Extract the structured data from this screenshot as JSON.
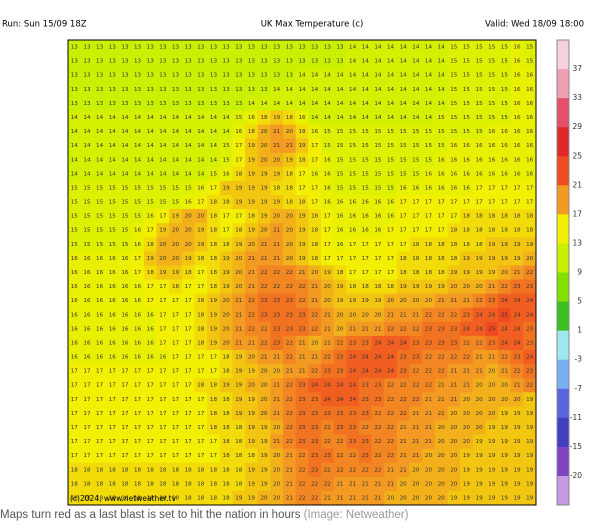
{
  "header": {
    "run": "Run: Sun 15/09 18Z",
    "title": "UK Max Temperature (c)",
    "valid": "Valid: Wed 18/09 18:00"
  },
  "copyright": "(c)2024, www.netweather.tv",
  "caption": {
    "text": "Maps turn red as a last blast is set to hit the nation in hours",
    "credit": "(Image: Netweather)"
  },
  "legend": {
    "labels": [
      37,
      33,
      29,
      25,
      21,
      17,
      13,
      9,
      5,
      1,
      -3,
      -7,
      -11,
      -15,
      -20
    ],
    "colors": [
      "#f6d0dc",
      "#f0a0b4",
      "#e4506a",
      "#e02828",
      "#f04a20",
      "#f29a22",
      "#f2f000",
      "#c8f000",
      "#84e000",
      "#3cc020",
      "#a0e8f0",
      "#7ab0f0",
      "#5a66e0",
      "#4040c0",
      "#8044c0",
      "#c49ae0"
    ]
  },
  "grid": [
    [
      13,
      13,
      13,
      13,
      13,
      13,
      13,
      13,
      13,
      13,
      13,
      13,
      13,
      13,
      13,
      13,
      13,
      13,
      13,
      13,
      13,
      13,
      14,
      14,
      14,
      14,
      14,
      14,
      14,
      14,
      15,
      15,
      15,
      15,
      15,
      16,
      15
    ],
    [
      13,
      13,
      13,
      13,
      13,
      13,
      13,
      13,
      13,
      13,
      13,
      13,
      13,
      13,
      13,
      13,
      13,
      13,
      13,
      13,
      13,
      13,
      14,
      14,
      14,
      14,
      14,
      14,
      14,
      14,
      15,
      15,
      15,
      15,
      15,
      16,
      15
    ],
    [
      13,
      13,
      13,
      13,
      13,
      13,
      13,
      13,
      13,
      13,
      13,
      13,
      13,
      13,
      13,
      13,
      13,
      13,
      14,
      14,
      14,
      14,
      14,
      14,
      14,
      14,
      14,
      14,
      14,
      14,
      15,
      15,
      15,
      15,
      15,
      16,
      16
    ],
    [
      13,
      13,
      13,
      13,
      13,
      13,
      13,
      13,
      13,
      13,
      13,
      13,
      13,
      13,
      13,
      13,
      14,
      14,
      14,
      14,
      14,
      14,
      14,
      14,
      14,
      14,
      14,
      14,
      14,
      14,
      15,
      15,
      15,
      15,
      15,
      16,
      16
    ],
    [
      13,
      13,
      13,
      13,
      13,
      13,
      13,
      13,
      13,
      13,
      13,
      13,
      13,
      13,
      14,
      14,
      14,
      14,
      14,
      14,
      14,
      14,
      14,
      14,
      14,
      14,
      14,
      14,
      14,
      14,
      15,
      15,
      15,
      15,
      15,
      16,
      16
    ],
    [
      14,
      14,
      14,
      14,
      14,
      14,
      14,
      14,
      14,
      14,
      14,
      14,
      14,
      15,
      16,
      18,
      19,
      18,
      16,
      14,
      14,
      14,
      14,
      14,
      14,
      14,
      14,
      14,
      14,
      15,
      15,
      15,
      15,
      15,
      15,
      16,
      16
    ],
    [
      14,
      14,
      14,
      14,
      14,
      14,
      14,
      14,
      14,
      14,
      14,
      14,
      14,
      16,
      18,
      20,
      21,
      20,
      18,
      16,
      15,
      15,
      15,
      15,
      15,
      15,
      15,
      15,
      15,
      15,
      15,
      15,
      15,
      16,
      16,
      16,
      16
    ],
    [
      14,
      14,
      14,
      14,
      14,
      14,
      14,
      14,
      14,
      14,
      14,
      14,
      15,
      17,
      19,
      20,
      21,
      21,
      19,
      17,
      15,
      15,
      15,
      15,
      15,
      15,
      15,
      15,
      15,
      15,
      16,
      16,
      16,
      16,
      16,
      16,
      16
    ],
    [
      14,
      14,
      14,
      14,
      14,
      14,
      14,
      14,
      14,
      14,
      14,
      14,
      15,
      17,
      19,
      20,
      20,
      19,
      18,
      17,
      16,
      15,
      15,
      15,
      15,
      15,
      15,
      15,
      15,
      16,
      16,
      16,
      16,
      16,
      16,
      16,
      16
    ],
    [
      14,
      14,
      14,
      14,
      14,
      14,
      14,
      14,
      14,
      14,
      14,
      15,
      16,
      18,
      19,
      19,
      19,
      18,
      17,
      16,
      16,
      15,
      15,
      15,
      15,
      15,
      15,
      15,
      16,
      16,
      16,
      16,
      16,
      16,
      16,
      16,
      16
    ],
    [
      15,
      15,
      15,
      15,
      15,
      15,
      15,
      15,
      15,
      15,
      16,
      17,
      19,
      19,
      19,
      19,
      18,
      18,
      17,
      17,
      16,
      15,
      15,
      15,
      15,
      15,
      16,
      16,
      16,
      16,
      16,
      16,
      17,
      17,
      17,
      17,
      17
    ],
    [
      15,
      15,
      15,
      15,
      15,
      15,
      15,
      15,
      15,
      16,
      17,
      18,
      18,
      19,
      19,
      19,
      19,
      18,
      18,
      17,
      16,
      16,
      16,
      16,
      16,
      16,
      17,
      17,
      17,
      17,
      17,
      17,
      17,
      17,
      17,
      17,
      17
    ],
    [
      15,
      15,
      15,
      15,
      15,
      15,
      16,
      17,
      19,
      20,
      20,
      18,
      17,
      17,
      18,
      19,
      20,
      20,
      19,
      18,
      17,
      16,
      16,
      16,
      16,
      16,
      17,
      17,
      17,
      17,
      17,
      18,
      18,
      18,
      18,
      18,
      18
    ],
    [
      15,
      15,
      15,
      15,
      15,
      16,
      17,
      19,
      20,
      20,
      19,
      18,
      17,
      18,
      19,
      20,
      21,
      20,
      19,
      18,
      17,
      16,
      16,
      16,
      16,
      17,
      17,
      17,
      17,
      17,
      18,
      18,
      18,
      18,
      18,
      18,
      18
    ],
    [
      15,
      15,
      15,
      15,
      15,
      16,
      18,
      20,
      20,
      20,
      19,
      18,
      18,
      19,
      20,
      21,
      21,
      20,
      19,
      18,
      17,
      16,
      17,
      17,
      17,
      17,
      17,
      18,
      18,
      18,
      18,
      18,
      18,
      19,
      19,
      19,
      19
    ],
    [
      16,
      16,
      16,
      16,
      16,
      17,
      19,
      20,
      20,
      19,
      18,
      18,
      19,
      20,
      21,
      21,
      21,
      20,
      19,
      18,
      17,
      17,
      17,
      17,
      17,
      17,
      18,
      18,
      18,
      18,
      18,
      19,
      19,
      19,
      19,
      19,
      20
    ],
    [
      16,
      16,
      16,
      16,
      16,
      17,
      18,
      19,
      19,
      18,
      17,
      18,
      19,
      20,
      21,
      22,
      22,
      22,
      21,
      20,
      19,
      18,
      17,
      17,
      17,
      17,
      18,
      18,
      18,
      18,
      19,
      19,
      19,
      19,
      20,
      21,
      22
    ],
    [
      16,
      16,
      16,
      16,
      16,
      16,
      17,
      17,
      18,
      17,
      17,
      18,
      19,
      20,
      21,
      22,
      22,
      22,
      22,
      21,
      20,
      19,
      18,
      18,
      18,
      18,
      19,
      19,
      19,
      19,
      20,
      20,
      20,
      21,
      22,
      23,
      23
    ],
    [
      16,
      16,
      16,
      16,
      16,
      16,
      17,
      17,
      17,
      17,
      18,
      19,
      20,
      21,
      22,
      23,
      23,
      23,
      22,
      21,
      20,
      19,
      19,
      19,
      19,
      20,
      20,
      20,
      20,
      21,
      21,
      21,
      22,
      23,
      24,
      24,
      24
    ],
    [
      16,
      16,
      16,
      16,
      16,
      16,
      16,
      17,
      17,
      17,
      18,
      19,
      20,
      21,
      22,
      23,
      23,
      23,
      23,
      22,
      21,
      20,
      20,
      20,
      20,
      21,
      21,
      21,
      22,
      22,
      22,
      23,
      24,
      24,
      25,
      24,
      24
    ],
    [
      16,
      16,
      16,
      16,
      16,
      16,
      16,
      17,
      17,
      17,
      18,
      19,
      20,
      21,
      22,
      22,
      23,
      23,
      23,
      22,
      21,
      20,
      21,
      21,
      21,
      22,
      22,
      22,
      23,
      23,
      23,
      24,
      24,
      25,
      24,
      24,
      23
    ],
    [
      16,
      16,
      16,
      16,
      16,
      16,
      16,
      17,
      17,
      17,
      18,
      19,
      20,
      21,
      21,
      22,
      23,
      22,
      21,
      20,
      21,
      22,
      23,
      23,
      24,
      24,
      24,
      23,
      23,
      23,
      23,
      22,
      22,
      23,
      24,
      24,
      23
    ],
    [
      16,
      16,
      16,
      16,
      16,
      16,
      16,
      16,
      17,
      17,
      17,
      17,
      18,
      19,
      20,
      21,
      21,
      22,
      21,
      21,
      22,
      23,
      24,
      24,
      24,
      24,
      23,
      23,
      22,
      22,
      22,
      22,
      21,
      21,
      22,
      23,
      24
    ],
    [
      17,
      17,
      17,
      17,
      17,
      17,
      17,
      17,
      17,
      17,
      17,
      17,
      18,
      19,
      19,
      20,
      20,
      21,
      21,
      22,
      23,
      23,
      24,
      24,
      24,
      24,
      23,
      22,
      22,
      22,
      21,
      21,
      21,
      20,
      21,
      22,
      23
    ],
    [
      17,
      17,
      17,
      17,
      17,
      17,
      17,
      17,
      17,
      17,
      18,
      18,
      19,
      19,
      20,
      20,
      21,
      22,
      23,
      24,
      24,
      24,
      24,
      23,
      23,
      22,
      22,
      22,
      22,
      21,
      21,
      21,
      20,
      20,
      20,
      21,
      22
    ],
    [
      17,
      17,
      17,
      17,
      17,
      17,
      17,
      17,
      17,
      17,
      17,
      18,
      18,
      19,
      19,
      20,
      21,
      22,
      23,
      23,
      24,
      24,
      24,
      23,
      23,
      22,
      22,
      22,
      21,
      21,
      21,
      20,
      20,
      20,
      20,
      20,
      19
    ],
    [
      17,
      17,
      17,
      17,
      17,
      17,
      17,
      17,
      17,
      17,
      17,
      18,
      18,
      19,
      19,
      20,
      21,
      22,
      23,
      23,
      23,
      23,
      23,
      23,
      22,
      22,
      22,
      21,
      21,
      21,
      20,
      20,
      20,
      20,
      19,
      19,
      19
    ],
    [
      17,
      17,
      17,
      17,
      17,
      17,
      17,
      17,
      17,
      17,
      17,
      18,
      18,
      18,
      19,
      19,
      20,
      22,
      23,
      23,
      22,
      23,
      23,
      22,
      22,
      22,
      21,
      21,
      21,
      20,
      20,
      20,
      20,
      19,
      19,
      19,
      19
    ],
    [
      17,
      17,
      17,
      17,
      17,
      17,
      17,
      17,
      17,
      17,
      17,
      17,
      18,
      18,
      19,
      19,
      21,
      22,
      23,
      23,
      22,
      22,
      23,
      23,
      22,
      22,
      21,
      21,
      21,
      20,
      20,
      20,
      19,
      19,
      19,
      19,
      19
    ],
    [
      17,
      17,
      17,
      17,
      17,
      17,
      17,
      17,
      17,
      17,
      17,
      17,
      18,
      18,
      18,
      19,
      20,
      21,
      22,
      23,
      23,
      22,
      22,
      23,
      22,
      22,
      21,
      21,
      20,
      20,
      20,
      19,
      19,
      19,
      19,
      19,
      19
    ],
    [
      18,
      18,
      18,
      18,
      18,
      18,
      18,
      18,
      18,
      18,
      18,
      18,
      18,
      18,
      19,
      19,
      20,
      21,
      22,
      23,
      22,
      22,
      22,
      22,
      22,
      21,
      21,
      20,
      20,
      20,
      20,
      19,
      19,
      19,
      19,
      19,
      19
    ],
    [
      18,
      18,
      18,
      18,
      18,
      18,
      18,
      18,
      18,
      18,
      18,
      18,
      18,
      18,
      19,
      19,
      20,
      21,
      22,
      22,
      22,
      21,
      21,
      21,
      21,
      21,
      20,
      20,
      20,
      20,
      20,
      19,
      19,
      19,
      19,
      19,
      19
    ],
    [
      18,
      18,
      18,
      18,
      18,
      18,
      18,
      18,
      18,
      18,
      18,
      18,
      18,
      19,
      19,
      20,
      20,
      21,
      22,
      22,
      21,
      21,
      21,
      21,
      21,
      20,
      20,
      20,
      20,
      20,
      19,
      19,
      19,
      19,
      19,
      19,
      19
    ]
  ]
}
